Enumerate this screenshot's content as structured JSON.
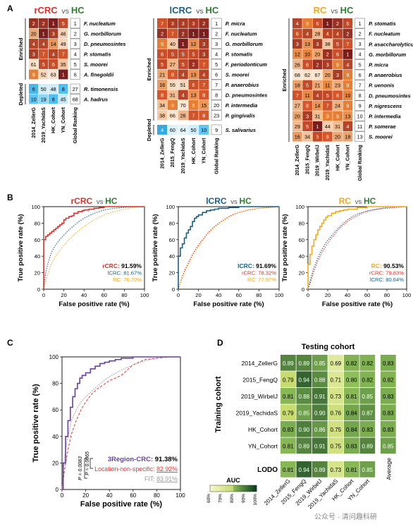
{
  "colors": {
    "rcrc": "#d9322b",
    "lcrc": "#1a5e82",
    "rc": "#f2a81d",
    "hc": "#2e7d32",
    "heat_low": "#ffffff",
    "heat_mid": "#f5b26b",
    "heat_high": "#7a1d1d",
    "depleted_low": "#4fc3f7",
    "auc_low": "#f7f7c9",
    "auc_high": "#0b3d1e"
  },
  "panel_labels": {
    "a": "A",
    "b": "B",
    "c": "C",
    "d": "D"
  },
  "vs": "vs",
  "group_names": {
    "rcrc": "rCRC",
    "lcrc": "lCRC",
    "rc": "RC",
    "hc": "HC"
  },
  "row_group_labels": {
    "enriched": "Enriched",
    "depleted": "Depleted"
  },
  "chart_data": [
    {
      "type": "heatmap",
      "panel": "A",
      "title_group": "rCRC",
      "title_ref": "HC",
      "columns": [
        "2014_ZellerG",
        "2019_YachidaS",
        "HK_Cohort",
        "YN_Cohort",
        "Global Ranking"
      ],
      "enriched": {
        "rows": [
          "F. nucleatum",
          "G. morbillorum",
          "D. pneumosintes",
          "P. stomatis",
          "S. moorei",
          "A. finegoldii"
        ],
        "values": [
          [
            2,
            2,
            1,
            5,
            1
          ],
          [
            20,
            1,
            3,
            46,
            2
          ],
          [
            4,
            4,
            14,
            49,
            3
          ],
          [
            3,
            7,
            4,
            7,
            4
          ],
          [
            61,
            5,
            6,
            35,
            5
          ],
          [
            9,
            52,
            63,
            1,
            6
          ]
        ]
      },
      "depleted": {
        "rows": [
          "R. timonensis",
          "A. hadrus"
        ],
        "values": [
          [
            6,
            50,
            48,
            8,
            27
          ],
          [
            10,
            19,
            8,
            45,
            68
          ]
        ]
      }
    },
    {
      "type": "heatmap",
      "panel": "A",
      "title_group": "lCRC",
      "title_ref": "HC",
      "columns": [
        "2014_ZellerG",
        "2015_FengQ",
        "2019_YachidaS",
        "HK_Cohort",
        "YN_Cohort",
        "Global Ranking"
      ],
      "enriched": {
        "rows": [
          "P. micra",
          "F. nucleatum",
          "G. morbillorum",
          "P. stomatis",
          "F. periodonticum",
          "S. moorei",
          "P. anaerobius",
          "D. pneumosintes",
          "P. intermedia",
          "P. gingivalis"
        ],
        "values": [
          [
            7,
            3,
            3,
            3,
            2,
            1
          ],
          [
            2,
            7,
            2,
            1,
            1,
            2
          ],
          [
            9,
            40,
            1,
            12,
            3,
            3
          ],
          [
            6,
            5,
            5,
            5,
            3,
            4
          ],
          [
            5,
            27,
            5,
            2,
            7,
            5
          ],
          [
            21,
            8,
            4,
            13,
            4,
            6
          ],
          [
            16,
            55,
            51,
            6,
            7,
            7
          ],
          [
            8,
            31,
            4,
            13,
            8,
            8
          ],
          [
            34,
            9,
            70,
            9,
            15,
            20
          ],
          [
            38,
            66,
            26,
            7,
            8,
            23
          ]
        ]
      },
      "depleted": {
        "rows": [
          "S. salivarius"
        ],
        "values": [
          [
            4,
            60,
            64,
            50,
            10,
            9
          ]
        ]
      }
    },
    {
      "type": "heatmap",
      "panel": "A",
      "title_group": "RC",
      "title_ref": "HC",
      "columns": [
        "2014_ZellerG",
        "2015_FengQ",
        "2019_WirbelJ",
        "2019_YachidaS",
        "HK_Cohort",
        "YN_Cohort",
        "Global Ranking"
      ],
      "enriched": {
        "rows": [
          "P. stomatis",
          "F. nucleatum",
          "P. asaccharolyticus",
          "G. morbillorum",
          "P. micra",
          "P. anaerobius",
          "P. uenonis",
          "D. pneumosintes",
          "P. nigrescens",
          "P. intermedia",
          "P. somerae",
          "S. moorei"
        ],
        "values": [
          [
            4,
            9,
            6,
            1,
            2,
            5,
            1
          ],
          [
            6,
            4,
            28,
            4,
            4,
            2,
            2
          ],
          [
            3,
            13,
            3,
            38,
            5,
            7,
            3
          ],
          [
            12,
            10,
            20,
            2,
            6,
            1,
            4
          ],
          [
            26,
            6,
            2,
            3,
            9,
            4,
            5
          ],
          [
            68,
            62,
            67,
            20,
            3,
            9,
            6
          ],
          [
            18,
            5,
            21,
            11,
            23,
            9,
            7
          ],
          [
            7,
            11,
            4,
            5,
            8,
            10,
            8
          ],
          [
            27,
            8,
            14,
            7,
            24,
            9,
            9
          ],
          [
            20,
            3,
            31,
            9,
            9,
            13,
            10
          ],
          [
            29,
            5,
            1,
            44,
            31,
            4,
            11
          ],
          [
            16,
            34,
            5,
            8,
            20,
            18,
            13
          ]
        ]
      },
      "depleted": null
    },
    {
      "type": "line",
      "panel": "B",
      "title_group": "rCRC",
      "title_ref": "HC",
      "xlabel": "False positive rate (%)",
      "ylabel": "True positive rate (%)",
      "xlim": [
        0,
        100
      ],
      "ylim": [
        0,
        100
      ],
      "ticks": [
        0,
        20,
        40,
        60,
        80,
        100
      ],
      "series": [
        {
          "name": "rCRC",
          "auc": "91.59%",
          "style": "solid",
          "x": [
            0,
            0,
            2,
            4,
            6,
            8,
            10,
            12,
            14,
            16,
            18,
            20,
            22,
            25,
            28,
            30,
            34,
            38,
            40,
            45,
            50,
            55,
            60,
            70,
            80,
            90,
            100
          ],
          "y": [
            0,
            60,
            64,
            66,
            68,
            70,
            72,
            74,
            76,
            78,
            80,
            84,
            86,
            88,
            89,
            92,
            94,
            95,
            96,
            97,
            98,
            99,
            100,
            100,
            100,
            100,
            100
          ]
        },
        {
          "name": "lCRC",
          "auc": "81.67%",
          "style": "dotted",
          "x": [
            0,
            2,
            4,
            6,
            8,
            10,
            14,
            18,
            22,
            26,
            30,
            35,
            40,
            45,
            50,
            55,
            60,
            70,
            80,
            90,
            100
          ],
          "y": [
            0,
            20,
            30,
            38,
            45,
            50,
            57,
            63,
            68,
            73,
            77,
            82,
            86,
            89,
            92,
            94,
            96,
            98,
            99,
            100,
            100
          ]
        },
        {
          "name": "RC",
          "auc": "76.70%",
          "style": "dotted",
          "x": [
            0,
            2,
            5,
            8,
            12,
            16,
            20,
            25,
            30,
            35,
            40,
            45,
            50,
            55,
            60,
            70,
            80,
            90,
            100
          ],
          "y": [
            0,
            10,
            22,
            32,
            40,
            47,
            53,
            60,
            66,
            71,
            76,
            80,
            84,
            87,
            90,
            94,
            97,
            99,
            100
          ]
        }
      ]
    },
    {
      "type": "line",
      "panel": "B",
      "title_group": "lCRC",
      "title_ref": "HC",
      "xlabel": "False positive rate (%)",
      "ylabel": "True positive rate (%)",
      "xlim": [
        0,
        100
      ],
      "ylim": [
        0,
        100
      ],
      "ticks": [
        0,
        20,
        40,
        60,
        80,
        100
      ],
      "series": [
        {
          "name": "lCRC",
          "auc": "91.69%",
          "style": "solid",
          "x": [
            0,
            0,
            2,
            4,
            6,
            8,
            10,
            12,
            14,
            16,
            18,
            20,
            24,
            28,
            32,
            36,
            40,
            50,
            60,
            70,
            80,
            90,
            100
          ],
          "y": [
            0,
            40,
            50,
            55,
            62,
            68,
            72,
            76,
            82,
            86,
            88,
            90,
            93,
            95,
            96,
            97,
            98,
            99,
            100,
            100,
            100,
            100,
            100
          ]
        },
        {
          "name": "rCRC",
          "auc": "78.32%",
          "style": "dotted",
          "x": [
            0,
            3,
            6,
            10,
            14,
            18,
            22,
            26,
            30,
            35,
            40,
            45,
            50,
            55,
            60,
            70,
            80,
            90,
            100
          ],
          "y": [
            0,
            12,
            22,
            32,
            42,
            50,
            57,
            63,
            69,
            75,
            80,
            84,
            88,
            91,
            93,
            96,
            98,
            99,
            100
          ]
        },
        {
          "name": "RC",
          "auc": "77.97%",
          "style": "dotted",
          "x": [
            0,
            3,
            6,
            10,
            14,
            18,
            22,
            26,
            30,
            35,
            40,
            45,
            50,
            55,
            60,
            70,
            80,
            90,
            100
          ],
          "y": [
            0,
            10,
            20,
            30,
            40,
            48,
            55,
            62,
            68,
            74,
            79,
            83,
            87,
            90,
            93,
            96,
            98,
            99,
            100
          ]
        }
      ]
    },
    {
      "type": "line",
      "panel": "B",
      "title_group": "RC",
      "title_ref": "HC",
      "xlabel": "False positive rate (%)",
      "ylabel": "True positive rate (%)",
      "xlim": [
        0,
        100
      ],
      "ylim": [
        0,
        100
      ],
      "ticks": [
        0,
        20,
        40,
        60,
        80,
        100
      ],
      "series": [
        {
          "name": "RC",
          "auc": "90.53%",
          "style": "solid",
          "x": [
            0,
            0,
            2,
            4,
            6,
            8,
            10,
            12,
            14,
            16,
            18,
            20,
            24,
            28,
            32,
            36,
            40,
            50,
            60,
            70,
            80,
            90,
            100
          ],
          "y": [
            0,
            30,
            42,
            52,
            60,
            66,
            72,
            76,
            80,
            84,
            87,
            89,
            92,
            94,
            95,
            96,
            97,
            99,
            100,
            100,
            100,
            100,
            100
          ]
        },
        {
          "name": "rCRC",
          "auc": "79.83%",
          "style": "dotted",
          "x": [
            0,
            3,
            6,
            10,
            14,
            18,
            22,
            26,
            30,
            35,
            40,
            45,
            50,
            55,
            60,
            70,
            80,
            90,
            100
          ],
          "y": [
            0,
            10,
            22,
            34,
            44,
            52,
            59,
            65,
            71,
            77,
            82,
            86,
            89,
            92,
            94,
            97,
            98,
            99,
            100
          ]
        },
        {
          "name": "lCRC",
          "auc": "80.64%",
          "style": "dotted",
          "x": [
            0,
            3,
            6,
            10,
            14,
            18,
            22,
            26,
            30,
            35,
            40,
            45,
            50,
            55,
            60,
            70,
            80,
            90,
            100
          ],
          "y": [
            0,
            14,
            26,
            38,
            48,
            56,
            62,
            68,
            73,
            79,
            84,
            88,
            91,
            93,
            95,
            97,
            99,
            100,
            100
          ]
        }
      ]
    },
    {
      "type": "line",
      "panel": "C",
      "xlabel": "False positive rate (%)",
      "ylabel": "True positive rate (%)",
      "xlim": [
        0,
        100
      ],
      "ylim": [
        0,
        100
      ],
      "ticks": [
        0,
        20,
        40,
        60,
        80,
        100
      ],
      "annotations": {
        "p1": "P = 0.0083",
        "p2": "P = 0.0065"
      },
      "series": [
        {
          "name": "3Region-CRC",
          "auc": "91.38%",
          "style": "solid",
          "x": [
            0,
            1,
            3,
            5,
            7,
            9,
            11,
            13,
            15,
            17,
            20,
            24,
            28,
            32,
            36,
            40,
            45,
            50,
            60,
            70,
            80,
            90,
            100
          ],
          "y": [
            0,
            20,
            40,
            52,
            62,
            70,
            76,
            80,
            84,
            86,
            88,
            91,
            93,
            95,
            96,
            97,
            98,
            99,
            100,
            100,
            100,
            100,
            100
          ]
        },
        {
          "name": "Location-non-specific",
          "auc": "82.92%",
          "style": "dashed",
          "x": [
            0,
            2,
            5,
            8,
            12,
            16,
            20,
            25,
            30,
            35,
            40,
            45,
            50,
            55,
            60,
            65,
            70,
            80,
            90,
            100
          ],
          "y": [
            0,
            14,
            30,
            42,
            52,
            60,
            66,
            72,
            76,
            79,
            82,
            84,
            86,
            90,
            94,
            96,
            98,
            99,
            100,
            100
          ]
        },
        {
          "name": "FIT",
          "auc": "83.91%",
          "style": "dotted",
          "x": [
            0,
            2,
            5,
            8,
            12,
            16,
            20,
            25,
            30,
            35,
            40,
            50,
            60,
            70,
            80,
            90,
            100
          ],
          "y": [
            0,
            24,
            40,
            52,
            60,
            66,
            70,
            74,
            78,
            82,
            85,
            90,
            94,
            97,
            99,
            100,
            100
          ]
        }
      ]
    },
    {
      "type": "heatmap",
      "panel": "D",
      "title": "Testing cohort",
      "ylabel": "Training cohort",
      "columns": [
        "2014_ZellerG",
        "2015_FengQ",
        "2019_WirbelJ",
        "2019_YachidaS",
        "HK_Cohort",
        "YN_Cohort"
      ],
      "rows": [
        "2014_ZellerG",
        "2015_FengQ",
        "2019_WirbelJ",
        "2019_YachidaS",
        "HK_Cohort",
        "YN_Cohort"
      ],
      "values": [
        [
          0.89,
          0.89,
          0.85,
          0.69,
          0.82,
          0.82
        ],
        [
          0.79,
          0.94,
          0.88,
          0.71,
          0.8,
          0.82
        ],
        [
          0.81,
          0.88,
          0.91,
          0.73,
          0.81,
          0.85
        ],
        [
          0.79,
          0.85,
          0.9,
          0.76,
          0.84,
          0.87
        ],
        [
          0.83,
          0.9,
          0.86,
          0.75,
          0.84,
          0.83
        ],
        [
          0.81,
          0.89,
          0.91,
          0.75,
          0.83,
          0.89
        ]
      ],
      "average_label": "Average",
      "average": [
        0.83,
        0.82,
        0.83,
        0.83,
        0.83,
        0.85
      ],
      "lodo_label": "LODO",
      "lodo": [
        0.81,
        0.94,
        0.89,
        0.73,
        0.81,
        0.85
      ],
      "legend_title": "AUC",
      "legend_ticks": [
        "60%",
        "70%",
        "80%",
        "90%",
        "100%"
      ]
    }
  ],
  "watermark": "公众号 · 清问趣科研"
}
